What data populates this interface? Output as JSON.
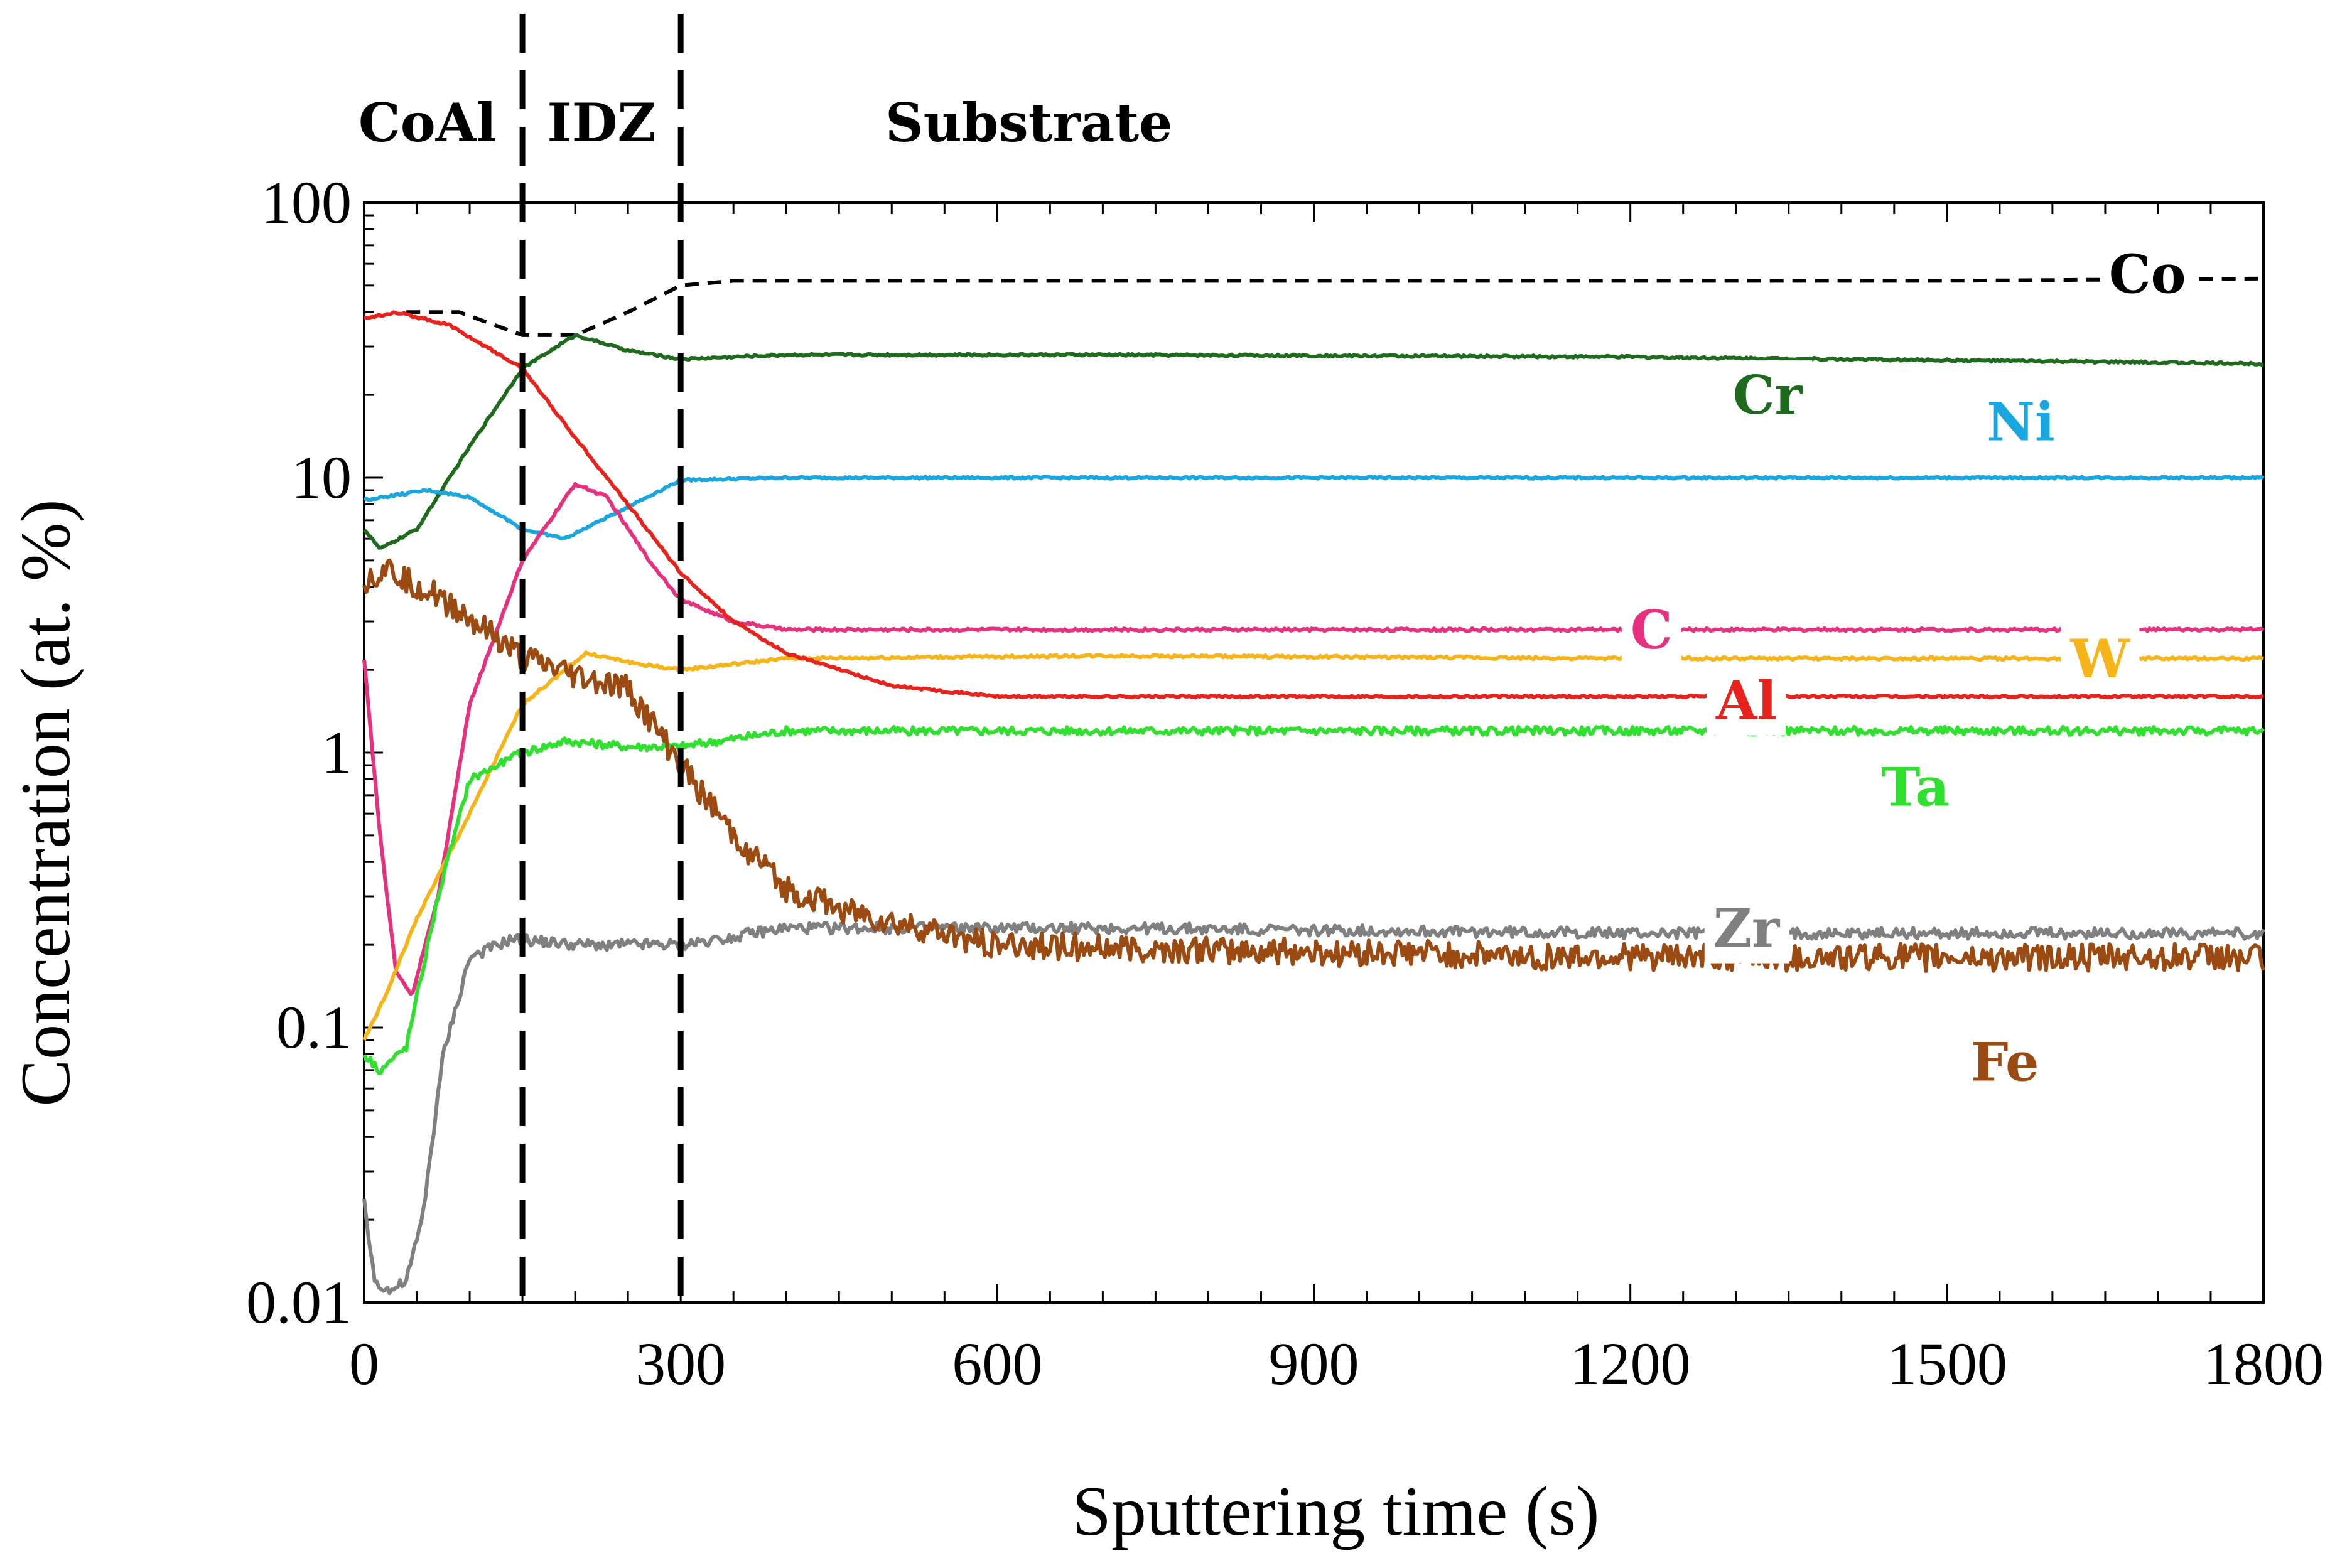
{
  "chart_data": {
    "type": "line",
    "title": "",
    "xlabel": "Sputtering time (s)",
    "ylabel": "Concentration (at. %)",
    "xlim": [
      0,
      1800
    ],
    "ylim": [
      0.01,
      100
    ],
    "yscale": "log",
    "x_ticks": [
      0,
      300,
      600,
      900,
      1200,
      1500,
      1800
    ],
    "y_ticks": [
      0.01,
      0.1,
      1,
      10,
      100
    ],
    "x_tick_labels": [
      "0",
      "300",
      "600",
      "900",
      "1200",
      "1500",
      "1800"
    ],
    "y_tick_labels": [
      "0.01",
      "0.1",
      "1",
      "10",
      "100"
    ],
    "grid": false,
    "region_boundaries": [
      150,
      300
    ],
    "regions": [
      {
        "name": "CoAl",
        "x_center": 60
      },
      {
        "name": "IDZ",
        "x_center": 225
      },
      {
        "name": "Substrate",
        "x_center": 630
      }
    ],
    "series": [
      {
        "name": "Co",
        "color": "#000000",
        "dashed": true,
        "noise": 0,
        "label_at": [
          1690,
          55
        ],
        "points": [
          [
            40,
            40
          ],
          [
            90,
            40
          ],
          [
            150,
            33
          ],
          [
            200,
            33
          ],
          [
            250,
            40
          ],
          [
            300,
            50
          ],
          [
            350,
            52
          ],
          [
            600,
            52
          ],
          [
            900,
            52
          ],
          [
            1200,
            52
          ],
          [
            1500,
            52
          ],
          [
            1800,
            53
          ]
        ]
      },
      {
        "name": "Cr",
        "color": "#1e6b1e",
        "dashed": false,
        "noise": 0.004,
        "label_at": [
          1330,
          20
        ],
        "points": [
          [
            0,
            6.5
          ],
          [
            15,
            5.5
          ],
          [
            50,
            6.5
          ],
          [
            100,
            13
          ],
          [
            150,
            25
          ],
          [
            200,
            33
          ],
          [
            250,
            29
          ],
          [
            300,
            27
          ],
          [
            400,
            28
          ],
          [
            700,
            28
          ],
          [
            1200,
            27.5
          ],
          [
            1800,
            26
          ]
        ]
      },
      {
        "name": "Ni",
        "color": "#1aa7e0",
        "dashed": false,
        "noise": 0.004,
        "label_at": [
          1570,
          16
        ],
        "points": [
          [
            0,
            8.3
          ],
          [
            60,
            9
          ],
          [
            100,
            8.5
          ],
          [
            150,
            6.5
          ],
          [
            190,
            6
          ],
          [
            240,
            7.5
          ],
          [
            300,
            9.8
          ],
          [
            400,
            10
          ],
          [
            900,
            10
          ],
          [
            1800,
            10
          ]
        ]
      },
      {
        "name": "C",
        "color": "#e8317e",
        "dashed": false,
        "noise": 0.005,
        "label_at": [
          1220,
          2.8
        ],
        "points": [
          [
            0,
            2.2
          ],
          [
            15,
            0.5
          ],
          [
            30,
            0.16
          ],
          [
            45,
            0.13
          ],
          [
            70,
            0.3
          ],
          [
            100,
            1.5
          ],
          [
            150,
            5
          ],
          [
            200,
            9.5
          ],
          [
            230,
            8.5
          ],
          [
            270,
            5
          ],
          [
            300,
            3.6
          ],
          [
            350,
            3
          ],
          [
            400,
            2.8
          ],
          [
            600,
            2.8
          ],
          [
            1200,
            2.8
          ],
          [
            1800,
            2.8
          ]
        ]
      },
      {
        "name": "W",
        "color": "#f7b418",
        "dashed": false,
        "noise": 0.005,
        "label_at": [
          1645,
          2.2
        ],
        "points": [
          [
            0,
            0.09
          ],
          [
            20,
            0.13
          ],
          [
            50,
            0.25
          ],
          [
            100,
            0.6
          ],
          [
            150,
            1.5
          ],
          [
            210,
            2.3
          ],
          [
            260,
            2.1
          ],
          [
            300,
            2
          ],
          [
            400,
            2.2
          ],
          [
            700,
            2.25
          ],
          [
            1200,
            2.2
          ],
          [
            1800,
            2.2
          ]
        ]
      },
      {
        "name": "Al",
        "color": "#e8221c",
        "dashed": false,
        "noise": 0.004,
        "label_at": [
          1310,
          1.55
        ],
        "points": [
          [
            0,
            38
          ],
          [
            30,
            40
          ],
          [
            80,
            36
          ],
          [
            150,
            25
          ],
          [
            200,
            14
          ],
          [
            250,
            8
          ],
          [
            300,
            4.5
          ],
          [
            350,
            3
          ],
          [
            400,
            2.3
          ],
          [
            500,
            1.75
          ],
          [
            600,
            1.6
          ],
          [
            1200,
            1.6
          ],
          [
            1800,
            1.6
          ]
        ]
      },
      {
        "name": "Ta",
        "color": "#2fe02f",
        "dashed": false,
        "noise": 0.015,
        "label_at": [
          1470,
          0.75
        ],
        "points": [
          [
            0,
            0.08
          ],
          [
            15,
            0.07
          ],
          [
            40,
            0.085
          ],
          [
            70,
            0.3
          ],
          [
            100,
            0.8
          ],
          [
            150,
            1
          ],
          [
            190,
            1.1
          ],
          [
            250,
            1.05
          ],
          [
            300,
            1.05
          ],
          [
            400,
            1.2
          ],
          [
            600,
            1.2
          ],
          [
            1200,
            1.2
          ],
          [
            1800,
            1.2
          ]
        ]
      },
      {
        "name": "Zr",
        "color": "#808080",
        "dashed": false,
        "noise": 0.02,
        "label_at": [
          1310,
          0.23
        ],
        "points": [
          [
            0,
            0.023
          ],
          [
            10,
            0.012
          ],
          [
            25,
            0.011
          ],
          [
            40,
            0.012
          ],
          [
            55,
            0.02
          ],
          [
            75,
            0.08
          ],
          [
            100,
            0.18
          ],
          [
            140,
            0.21
          ],
          [
            200,
            0.2
          ],
          [
            300,
            0.2
          ],
          [
            400,
            0.23
          ],
          [
            700,
            0.23
          ],
          [
            1200,
            0.22
          ],
          [
            1800,
            0.22
          ]
        ]
      },
      {
        "name": "Fe",
        "color": "#9b4a12",
        "dashed": false,
        "noise": 0.05,
        "label_at": [
          1555,
          0.075
        ],
        "points": [
          [
            0,
            4.2
          ],
          [
            20,
            4.7
          ],
          [
            80,
            3.5
          ],
          [
            150,
            2.2
          ],
          [
            200,
            1.9
          ],
          [
            250,
            1.7
          ],
          [
            300,
            0.9
          ],
          [
            350,
            0.5
          ],
          [
            400,
            0.32
          ],
          [
            450,
            0.27
          ],
          [
            500,
            0.24
          ],
          [
            600,
            0.2
          ],
          [
            800,
            0.19
          ],
          [
            1200,
            0.18
          ],
          [
            1800,
            0.18
          ]
        ]
      }
    ]
  }
}
